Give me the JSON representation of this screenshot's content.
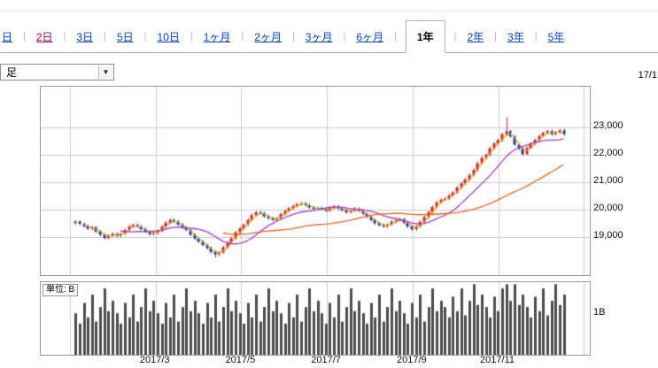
{
  "header": {
    "tabs": [
      {
        "label": "日",
        "style": "link"
      },
      {
        "label": "2日",
        "style": "visited"
      },
      {
        "label": "3日",
        "style": "link"
      },
      {
        "label": "5日",
        "style": "link"
      },
      {
        "label": "10日",
        "style": "link"
      },
      {
        "label": "1ヶ月",
        "style": "link"
      },
      {
        "label": "2ヶ月",
        "style": "link"
      },
      {
        "label": "3ヶ月",
        "style": "link"
      },
      {
        "label": "6ヶ月",
        "style": "link"
      },
      {
        "label": "1年",
        "style": "active"
      },
      {
        "label": "2年",
        "style": "link"
      },
      {
        "label": "3年",
        "style": "link"
      },
      {
        "label": "5年",
        "style": "link"
      }
    ],
    "interval_select": {
      "value": "足"
    },
    "date_label": "17/1"
  },
  "chart_data": {
    "type": "candlestick",
    "title": "",
    "y_range": [
      17600,
      24500
    ],
    "y_ticks": [
      23000,
      22000,
      21000,
      20000,
      19000
    ],
    "y_tick_labels": [
      "23,000",
      "22,000",
      "21,000",
      "20,000",
      "19,000"
    ],
    "x_tick_labels": [
      "2017/3",
      "2017/5",
      "2017/7",
      "2017/9",
      "2017/11"
    ],
    "grid": true,
    "colors": {
      "up": "#d8232a",
      "down": "#2438b0",
      "volume": "#4d4d4d",
      "grid": "#cccccc",
      "border": "#999999"
    },
    "ma_lines": [
      {
        "name": "ma-short",
        "period": 3,
        "color": "#ccaa22"
      },
      {
        "name": "ma-mid",
        "period": 12,
        "color": "#a83cc8"
      },
      {
        "name": "ma-long",
        "period": 37,
        "color": "#e8641e"
      }
    ],
    "volume": {
      "unit_label": "単位: B",
      "tick_label": "1B",
      "tick_value": 1.0,
      "max": 1.75
    },
    "bars": [
      [
        19500,
        19610,
        19450,
        19560,
        1.0
      ],
      [
        19560,
        19610,
        19430,
        19480,
        0.75
      ],
      [
        19480,
        19530,
        19340,
        19390,
        1.25
      ],
      [
        19390,
        19440,
        19250,
        19300,
        0.9
      ],
      [
        19300,
        19400,
        19250,
        19350,
        1.45
      ],
      [
        19350,
        19400,
        19150,
        19200,
        0.8
      ],
      [
        19200,
        19250,
        19030,
        19080,
        1.15
      ],
      [
        19080,
        19130,
        18910,
        18960,
        1.6
      ],
      [
        18960,
        19100,
        18910,
        19050,
        1.05
      ],
      [
        19050,
        19160,
        19000,
        19110,
        1.3
      ],
      [
        19110,
        19160,
        18990,
        19040,
        1.0
      ],
      [
        19040,
        19170,
        18990,
        19120,
        0.75
      ],
      [
        19120,
        19300,
        19070,
        19250,
        1.25
      ],
      [
        19250,
        19430,
        19200,
        19380,
        0.9
      ],
      [
        19380,
        19490,
        19330,
        19440,
        1.45
      ],
      [
        19440,
        19490,
        19330,
        19380,
        0.8
      ],
      [
        19380,
        19430,
        19230,
        19280,
        1.15
      ],
      [
        19280,
        19330,
        19140,
        19190,
        1.6
      ],
      [
        19190,
        19240,
        19050,
        19100,
        1.05
      ],
      [
        19100,
        19190,
        19050,
        19140,
        1.3
      ],
      [
        19140,
        19270,
        19090,
        19220,
        1.0
      ],
      [
        19220,
        19430,
        19170,
        19380,
        0.75
      ],
      [
        19380,
        19570,
        19330,
        19520,
        1.25
      ],
      [
        19520,
        19670,
        19470,
        19620,
        0.9
      ],
      [
        19620,
        19670,
        19510,
        19560,
        1.45
      ],
      [
        19560,
        19610,
        19400,
        19450,
        0.8
      ],
      [
        19450,
        19500,
        19290,
        19340,
        1.15
      ],
      [
        19340,
        19390,
        19210,
        19260,
        1.6
      ],
      [
        19260,
        19310,
        19030,
        19080,
        1.05
      ],
      [
        19080,
        19130,
        18890,
        18940,
        1.3
      ],
      [
        18940,
        18990,
        18780,
        18830,
        1.0
      ],
      [
        18830,
        18880,
        18650,
        18700,
        0.75
      ],
      [
        18700,
        18750,
        18540,
        18590,
        1.25
      ],
      [
        18590,
        18640,
        18400,
        18450,
        0.9
      ],
      [
        18450,
        18500,
        18250,
        18360,
        1.45
      ],
      [
        18360,
        18480,
        18280,
        18430,
        0.8
      ],
      [
        18430,
        18670,
        18380,
        18620,
        1.15
      ],
      [
        18620,
        18840,
        18570,
        18790,
        1.6
      ],
      [
        18790,
        19000,
        18740,
        18950,
        1.05
      ],
      [
        18950,
        19220,
        18900,
        19170,
        1.3
      ],
      [
        19170,
        19360,
        19120,
        19310,
        1.0
      ],
      [
        19310,
        19500,
        19260,
        19450,
        0.75
      ],
      [
        19450,
        19670,
        19400,
        19620,
        1.25
      ],
      [
        19620,
        19850,
        19570,
        19800,
        0.9
      ],
      [
        19800,
        19950,
        19750,
        19900,
        1.45
      ],
      [
        19900,
        19950,
        19820,
        19870,
        0.8
      ],
      [
        19870,
        19920,
        19700,
        19750,
        1.15
      ],
      [
        19750,
        19800,
        19630,
        19680,
        1.6
      ],
      [
        19680,
        19730,
        19570,
        19620,
        1.05
      ],
      [
        19620,
        19730,
        19570,
        19680,
        1.3
      ],
      [
        19680,
        19890,
        19630,
        19840,
        1.0
      ],
      [
        19840,
        20000,
        19790,
        19950,
        0.75
      ],
      [
        19950,
        20100,
        19900,
        20050,
        1.25
      ],
      [
        20050,
        20180,
        20000,
        20130,
        0.9
      ],
      [
        20130,
        20250,
        20080,
        20200,
        1.45
      ],
      [
        20200,
        20280,
        20150,
        20230,
        0.8
      ],
      [
        20230,
        20280,
        20110,
        20160,
        1.15
      ],
      [
        20160,
        20210,
        20030,
        20080,
        1.6
      ],
      [
        20080,
        20130,
        19970,
        20020,
        1.05
      ],
      [
        20020,
        20110,
        19970,
        20060,
        1.3
      ],
      [
        20060,
        20110,
        19970,
        20020,
        1.0
      ],
      [
        20020,
        20070,
        19910,
        19960,
        0.75
      ],
      [
        19960,
        20130,
        19910,
        20080,
        1.25
      ],
      [
        20080,
        20170,
        20030,
        20120,
        0.9
      ],
      [
        20120,
        20170,
        20000,
        20050,
        1.45
      ],
      [
        20050,
        20100,
        19930,
        19980,
        0.8
      ],
      [
        19980,
        20030,
        19850,
        19900,
        1.15
      ],
      [
        19900,
        20010,
        19850,
        19960,
        1.6
      ],
      [
        19960,
        20080,
        19910,
        20030,
        1.05
      ],
      [
        20030,
        20080,
        19900,
        19950,
        1.3
      ],
      [
        19950,
        20000,
        19800,
        19850,
        1.0
      ],
      [
        19850,
        19900,
        19690,
        19740,
        0.75
      ],
      [
        19740,
        19790,
        19570,
        19620,
        1.25
      ],
      [
        19620,
        19670,
        19450,
        19500,
        0.9
      ],
      [
        19500,
        19550,
        19380,
        19430,
        1.45
      ],
      [
        19430,
        19480,
        19330,
        19380,
        0.8
      ],
      [
        19380,
        19500,
        19330,
        19450,
        1.15
      ],
      [
        19450,
        19610,
        19400,
        19560,
        1.6
      ],
      [
        19560,
        19660,
        19510,
        19610,
        1.05
      ],
      [
        19610,
        19700,
        19560,
        19650,
        1.3
      ],
      [
        19650,
        19700,
        19470,
        19520,
        1.0
      ],
      [
        19520,
        19570,
        19330,
        19380,
        0.75
      ],
      [
        19380,
        19430,
        19230,
        19280,
        1.25
      ],
      [
        19280,
        19440,
        19230,
        19390,
        0.9
      ],
      [
        19390,
        19600,
        19340,
        19550,
        1.45
      ],
      [
        19550,
        19780,
        19500,
        19730,
        0.8
      ],
      [
        19730,
        19960,
        19680,
        19910,
        1.15
      ],
      [
        19910,
        20150,
        19860,
        20100,
        1.6
      ],
      [
        20100,
        20320,
        20050,
        20270,
        1.05
      ],
      [
        20270,
        20410,
        20220,
        20360,
        1.3
      ],
      [
        20360,
        20450,
        20310,
        20400,
        1.15
      ],
      [
        20400,
        20570,
        20350,
        20520,
        0.9
      ],
      [
        20520,
        20680,
        20470,
        20630,
        1.4
      ],
      [
        20630,
        20860,
        20580,
        20810,
        1.05
      ],
      [
        20810,
        21010,
        20760,
        20960,
        1.6
      ],
      [
        20960,
        21150,
        20910,
        21100,
        0.95
      ],
      [
        21100,
        21320,
        21050,
        21270,
        1.3
      ],
      [
        21270,
        21500,
        21220,
        21450,
        1.7
      ],
      [
        21450,
        21750,
        21400,
        21700,
        1.2
      ],
      [
        21700,
        21950,
        21650,
        21900,
        1.45
      ],
      [
        21900,
        22060,
        21850,
        22010,
        1.15
      ],
      [
        22010,
        22300,
        21960,
        22250,
        0.9
      ],
      [
        22250,
        22470,
        22200,
        22420,
        1.4
      ],
      [
        22420,
        22590,
        22370,
        22540,
        1.05
      ],
      [
        22540,
        22810,
        22490,
        22760,
        1.6
      ],
      [
        22760,
        23380,
        22700,
        22870,
        1.7
      ],
      [
        22870,
        22920,
        22630,
        22680,
        1.3
      ],
      [
        22680,
        22730,
        22330,
        22380,
        1.7
      ],
      [
        22380,
        22430,
        22180,
        22230,
        1.2
      ],
      [
        22230,
        22280,
        21980,
        22030,
        1.45
      ],
      [
        22030,
        22310,
        21980,
        22260,
        1.15
      ],
      [
        22260,
        22470,
        22210,
        22420,
        0.9
      ],
      [
        22420,
        22600,
        22370,
        22550,
        1.4
      ],
      [
        22550,
        22750,
        22500,
        22700,
        1.05
      ],
      [
        22700,
        22860,
        22650,
        22810,
        1.6
      ],
      [
        22810,
        22920,
        22760,
        22870,
        0.95
      ],
      [
        22870,
        22920,
        22710,
        22760,
        1.3
      ],
      [
        22760,
        22880,
        22710,
        22830,
        1.7
      ],
      [
        22830,
        22950,
        22780,
        22900,
        1.2
      ],
      [
        22900,
        22950,
        22710,
        22760,
        1.45
      ]
    ]
  }
}
